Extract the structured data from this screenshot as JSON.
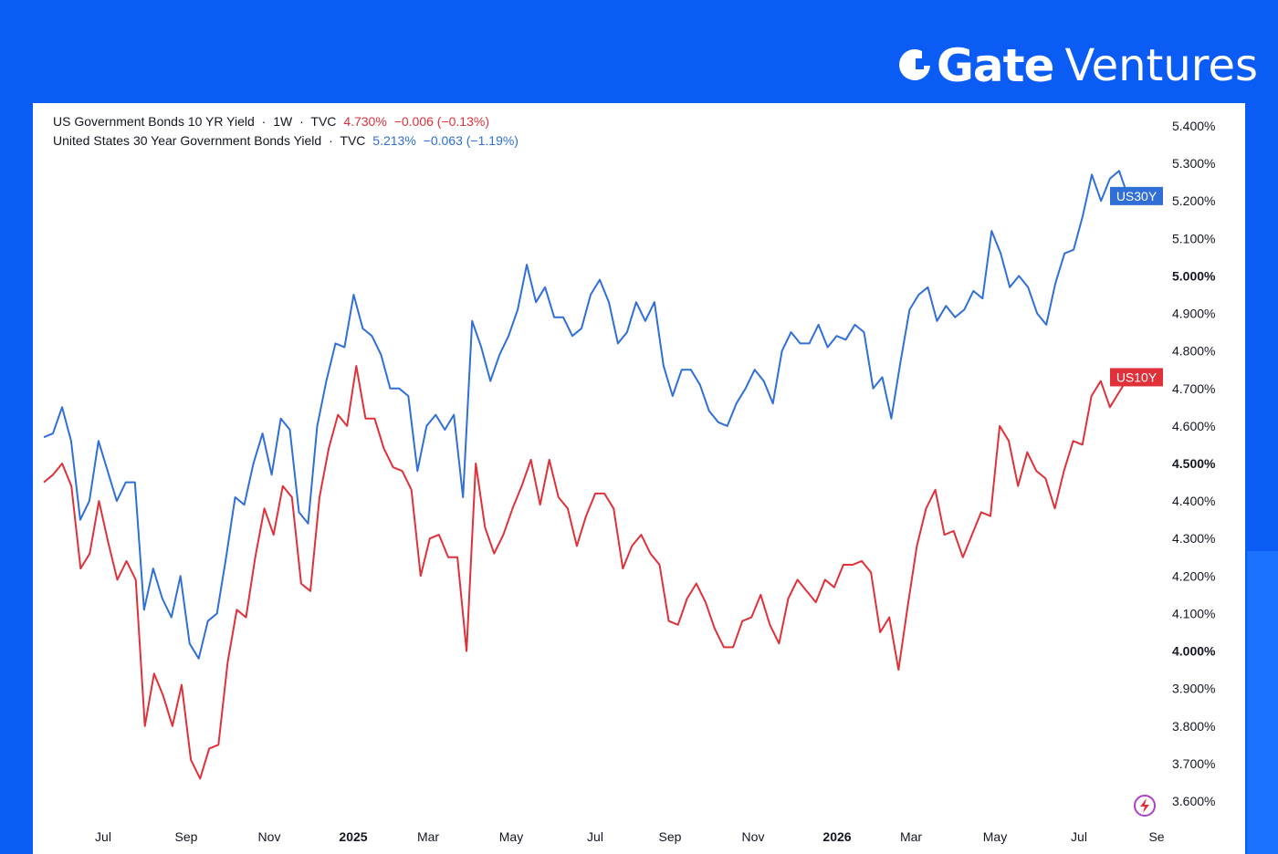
{
  "brand": {
    "name_bold": "Gate",
    "name_light": "Ventures",
    "logo_icon": "gate-logo-icon"
  },
  "legend": {
    "us10y": {
      "title": "US Government Bonds 10 YR Yield",
      "sep1": "·",
      "interval": "1W",
      "sep2": "·",
      "source": "TVC",
      "value": "4.730%",
      "change": "−0.006 (−0.13%)"
    },
    "us30y": {
      "title": "United States 30 Year Government Bonds Yield",
      "sep": "·",
      "source": "TVC",
      "value": "5.213%",
      "change": "−0.063 (−1.19%)"
    }
  },
  "colors": {
    "background": "#0a5cf5",
    "us10y": "#e0303a",
    "us30y": "#2f6fd6"
  },
  "icons": {
    "bolt": "lightning-bolt-icon"
  },
  "chart_data": {
    "type": "line",
    "grid": false,
    "x_tick_labels": [
      {
        "label": "Jul",
        "bold": false
      },
      {
        "label": "Sep",
        "bold": false
      },
      {
        "label": "Nov",
        "bold": false
      },
      {
        "label": "2025",
        "bold": true
      },
      {
        "label": "Mar",
        "bold": false
      },
      {
        "label": "May",
        "bold": false
      },
      {
        "label": "Jul",
        "bold": false
      },
      {
        "label": "Sep",
        "bold": false
      },
      {
        "label": "Nov",
        "bold": false
      },
      {
        "label": "2026",
        "bold": true
      },
      {
        "label": "Mar",
        "bold": false
      },
      {
        "label": "May",
        "bold": false
      },
      {
        "label": "Jul",
        "bold": false
      },
      {
        "label": "Se",
        "bold": false
      }
    ],
    "y_ticks": [
      {
        "value": 5.4,
        "label": "5.400%",
        "bold": false
      },
      {
        "value": 5.3,
        "label": "5.300%",
        "bold": false
      },
      {
        "value": 5.2,
        "label": "5.200%",
        "bold": false
      },
      {
        "value": 5.1,
        "label": "5.100%",
        "bold": false
      },
      {
        "value": 5.0,
        "label": "5.000%",
        "bold": true
      },
      {
        "value": 4.9,
        "label": "4.900%",
        "bold": false
      },
      {
        "value": 4.8,
        "label": "4.800%",
        "bold": false
      },
      {
        "value": 4.7,
        "label": "4.700%",
        "bold": false
      },
      {
        "value": 4.6,
        "label": "4.600%",
        "bold": false
      },
      {
        "value": 4.5,
        "label": "4.500%",
        "bold": true
      },
      {
        "value": 4.4,
        "label": "4.400%",
        "bold": false
      },
      {
        "value": 4.3,
        "label": "4.300%",
        "bold": false
      },
      {
        "value": 4.2,
        "label": "4.200%",
        "bold": false
      },
      {
        "value": 4.1,
        "label": "4.100%",
        "bold": false
      },
      {
        "value": 4.0,
        "label": "4.000%",
        "bold": true
      },
      {
        "value": 3.9,
        "label": "3.900%",
        "bold": false
      },
      {
        "value": 3.8,
        "label": "3.800%",
        "bold": false
      },
      {
        "value": 3.7,
        "label": "3.700%",
        "bold": false
      },
      {
        "value": 3.6,
        "label": "3.600%",
        "bold": false
      }
    ],
    "ylim": [
      3.55,
      5.43
    ],
    "series": [
      {
        "name": "US30Y",
        "values": [
          4.57,
          4.58,
          4.65,
          4.56,
          4.35,
          4.4,
          4.56,
          4.48,
          4.4,
          4.45,
          4.45,
          4.11,
          4.22,
          4.14,
          4.09,
          4.2,
          4.02,
          3.98,
          4.08,
          4.1,
          4.25,
          4.41,
          4.39,
          4.5,
          4.58,
          4.47,
          4.62,
          4.59,
          4.37,
          4.34,
          4.6,
          4.72,
          4.82,
          4.81,
          4.95,
          4.86,
          4.84,
          4.79,
          4.7,
          4.7,
          4.68,
          4.48,
          4.6,
          4.63,
          4.59,
          4.63,
          4.41,
          4.88,
          4.81,
          4.72,
          4.79,
          4.84,
          4.91,
          5.03,
          4.93,
          4.97,
          4.89,
          4.89,
          4.84,
          4.86,
          4.95,
          4.99,
          4.93,
          4.82,
          4.85,
          4.93,
          4.88,
          4.93,
          4.76,
          4.68,
          4.75,
          4.75,
          4.71,
          4.64,
          4.61,
          4.6,
          4.66,
          4.7,
          4.75,
          4.72,
          4.66,
          4.8,
          4.85,
          4.82,
          4.82,
          4.87,
          4.81,
          4.84,
          4.83,
          4.87,
          4.85,
          4.7,
          4.73,
          4.62,
          4.77,
          4.91,
          4.95,
          4.97,
          4.88,
          4.92,
          4.89,
          4.91,
          4.96,
          4.94,
          5.12,
          5.06,
          4.97,
          5.0,
          4.97,
          4.9,
          4.87,
          4.98,
          5.06,
          5.07,
          5.16,
          5.27,
          5.2,
          5.26,
          5.28,
          5.21
        ]
      },
      {
        "name": "US10Y",
        "values": [
          4.45,
          4.47,
          4.5,
          4.44,
          4.22,
          4.26,
          4.4,
          4.29,
          4.19,
          4.24,
          4.19,
          3.8,
          3.94,
          3.88,
          3.8,
          3.91,
          3.71,
          3.66,
          3.74,
          3.75,
          3.97,
          4.11,
          4.09,
          4.25,
          4.38,
          4.31,
          4.44,
          4.41,
          4.18,
          4.16,
          4.41,
          4.54,
          4.63,
          4.6,
          4.76,
          4.62,
          4.62,
          4.54,
          4.49,
          4.48,
          4.43,
          4.2,
          4.3,
          4.31,
          4.25,
          4.25,
          4.0,
          4.5,
          4.33,
          4.26,
          4.31,
          4.38,
          4.44,
          4.51,
          4.39,
          4.51,
          4.41,
          4.38,
          4.28,
          4.36,
          4.42,
          4.42,
          4.38,
          4.22,
          4.28,
          4.31,
          4.26,
          4.23,
          4.08,
          4.07,
          4.14,
          4.18,
          4.13,
          4.06,
          4.01,
          4.01,
          4.08,
          4.09,
          4.15,
          4.07,
          4.02,
          4.14,
          4.19,
          4.16,
          4.13,
          4.19,
          4.17,
          4.23,
          4.23,
          4.24,
          4.21,
          4.05,
          4.09,
          3.95,
          4.12,
          4.28,
          4.38,
          4.43,
          4.31,
          4.32,
          4.25,
          4.31,
          4.37,
          4.36,
          4.6,
          4.56,
          4.44,
          4.53,
          4.48,
          4.46,
          4.38,
          4.48,
          4.56,
          4.55,
          4.68,
          4.72,
          4.65,
          4.69,
          4.73
        ]
      }
    ],
    "end_labels": [
      {
        "series": "US30Y",
        "text": "US30Y",
        "value": 5.213
      },
      {
        "series": "US10Y",
        "text": "US10Y",
        "value": 4.73
      }
    ]
  }
}
